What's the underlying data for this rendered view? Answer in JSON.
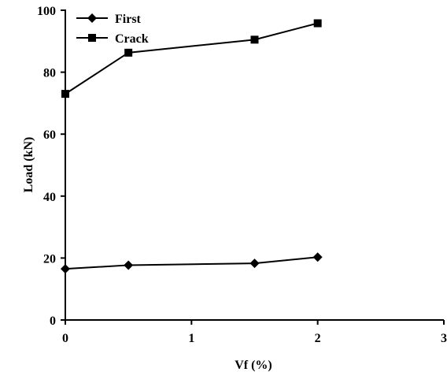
{
  "chart_data": {
    "type": "line",
    "title": "",
    "xlabel": "Vf (%)",
    "ylabel": "Load (kN)",
    "xlim": [
      0,
      3
    ],
    "ylim": [
      0,
      100
    ],
    "xticks": [
      0,
      1,
      2,
      3
    ],
    "xtick_labels": [
      "0",
      "1",
      "2",
      "3"
    ],
    "yticks": [
      0,
      20,
      40,
      60,
      80,
      100
    ],
    "ytick_labels": [
      "0",
      "20",
      "40",
      "60",
      "80",
      "100"
    ],
    "grid": false,
    "legend_position": "top-left",
    "series": [
      {
        "name": "First",
        "marker": "diamond",
        "color": "#000000",
        "x": [
          0,
          0.5,
          1.5,
          2
        ],
        "y": [
          16.5,
          17.7,
          18.3,
          20.3
        ]
      },
      {
        "name": "Crack",
        "marker": "square",
        "color": "#000000",
        "x": [
          0,
          0.5,
          1.5,
          2
        ],
        "y": [
          73,
          86.3,
          90.5,
          95.8
        ]
      }
    ]
  }
}
